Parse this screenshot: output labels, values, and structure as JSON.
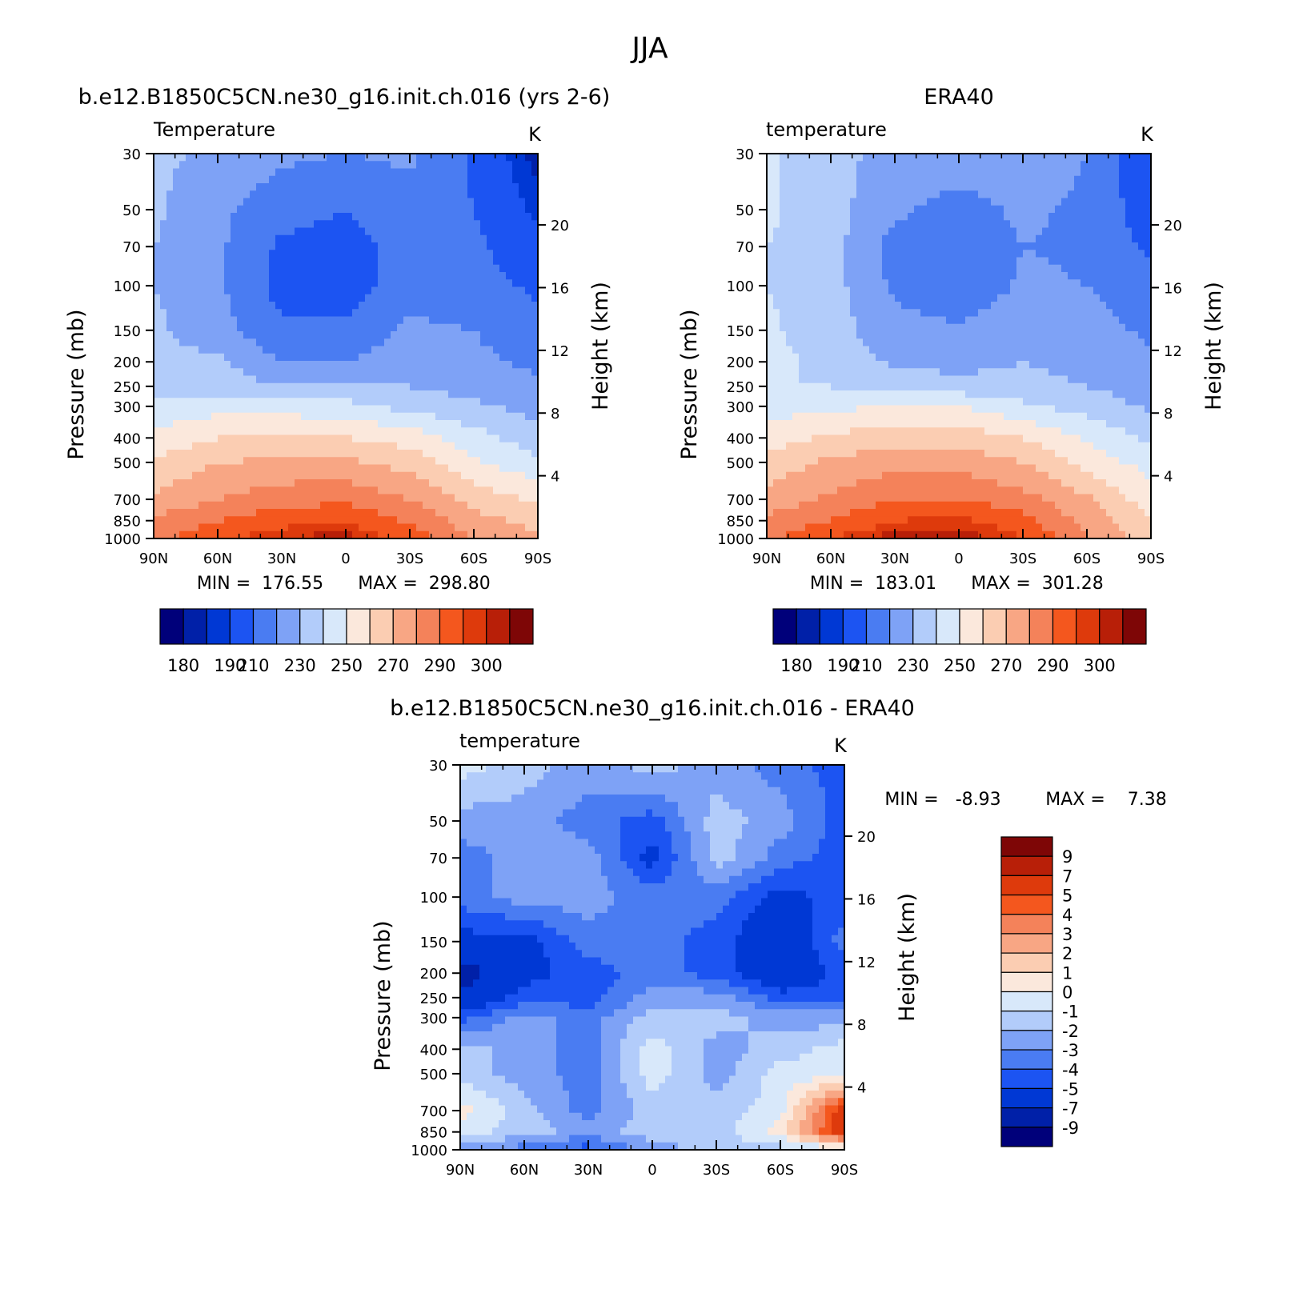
{
  "figure": {
    "season": "JJA"
  },
  "colors": {
    "abs_scale": [
      "#00007a",
      "#0020a8",
      "#0038d4",
      "#1c54f2",
      "#4a7cf2",
      "#7ea2f6",
      "#b2ccfa",
      "#d8e8fa",
      "#fbe8dc",
      "#fbcdb2",
      "#f8a684",
      "#f4825a",
      "#f4571e",
      "#de3a0c",
      "#b81f08",
      "#7e0606"
    ],
    "diff_scale": [
      "#00007a",
      "#0020a8",
      "#0038d4",
      "#1c54f2",
      "#4a7cf2",
      "#7ea2f6",
      "#b2ccfa",
      "#d8e8fa",
      "#fbe8dc",
      "#fbcdb2",
      "#f8a684",
      "#f4825a",
      "#f4571e",
      "#de3a0c",
      "#b81f08",
      "#7e0606"
    ]
  },
  "panels": {
    "model": {
      "title": "b.e12.B1850C5CN.ne30_g16.init.ch.016 (yrs 2-6)",
      "variable": "Temperature",
      "units": "K",
      "min_label": "MIN =  176.55",
      "max_label": "MAX =  298.80"
    },
    "obs": {
      "title": "ERA40",
      "variable": "temperature",
      "units": "K",
      "min_label": "MIN =  183.01",
      "max_label": "MAX =  301.28"
    },
    "diff": {
      "title": "b.e12.B1850C5CN.ne30_g16.init.ch.016 - ERA40",
      "variable": "temperature",
      "units": "K",
      "min_label": "MIN =   -8.93",
      "max_label": "MAX =    7.38"
    }
  },
  "axes": {
    "ylabel": "Pressure (mb)",
    "y2label": "Height (km)"
  },
  "colorbars": {
    "abs_labels": [
      "180",
      "190",
      "210",
      "230",
      "250",
      "270",
      "290",
      "300"
    ],
    "diff_labels": [
      "9",
      "7",
      "5",
      "4",
      "3",
      "2",
      "1",
      "0",
      "-1",
      "-2",
      "-3",
      "-4",
      "-5",
      "-7",
      "-9"
    ]
  },
  "chart_data": [
    {
      "type": "heatmap",
      "title": "b.e12.B1850C5CN.ne30_g16.init.ch.016 (yrs 2-6)",
      "variable": "Temperature",
      "units": "K",
      "x": [
        "90N",
        "60N",
        "30N",
        "0",
        "30S",
        "60S",
        "90S"
      ],
      "y": [
        30,
        50,
        70,
        100,
        150,
        200,
        250,
        300,
        400,
        500,
        700,
        850,
        1000
      ],
      "y_scale": "log",
      "y2_ticks_km": [
        4,
        8,
        12,
        16,
        20
      ],
      "ylabel": "Pressure (mb)",
      "y2label": "Height (km)",
      "lat": [
        90,
        60,
        30,
        0,
        -30,
        -60,
        -90
      ],
      "z": [
        [
          222,
          218,
          212,
          210,
          212,
          198,
          182
        ],
        [
          222,
          212,
          204,
          200,
          206,
          200,
          188
        ],
        [
          220,
          212,
          198,
          196,
          204,
          202,
          192
        ],
        [
          220,
          212,
          196,
          194,
          206,
          204,
          198
        ],
        [
          222,
          214,
          202,
          202,
          212,
          210,
          204
        ],
        [
          222,
          222,
          210,
          210,
          216,
          212,
          208
        ],
        [
          224,
          226,
          220,
          220,
          220,
          216,
          212
        ],
        [
          234,
          236,
          236,
          234,
          226,
          222,
          216
        ],
        [
          242,
          250,
          250,
          250,
          246,
          234,
          224
        ],
        [
          252,
          260,
          262,
          262,
          256,
          242,
          232
        ],
        [
          262,
          270,
          276,
          278,
          270,
          256,
          248
        ],
        [
          272,
          280,
          286,
          288,
          278,
          264,
          256
        ],
        [
          276,
          288,
          296,
          298,
          286,
          270,
          262
        ]
      ],
      "min": 176.55,
      "max": 298.8
    },
    {
      "type": "heatmap",
      "title": "ERA40",
      "variable": "temperature",
      "units": "K",
      "x": [
        "90N",
        "60N",
        "30N",
        "0",
        "30S",
        "60S",
        "90S"
      ],
      "y": [
        30,
        50,
        70,
        100,
        150,
        200,
        250,
        300,
        400,
        500,
        700,
        850,
        1000
      ],
      "y_scale": "log",
      "y2_ticks_km": [
        4,
        8,
        12,
        16,
        20
      ],
      "ylabel": "Pressure (mb)",
      "y2label": "Height (km)",
      "lat": [
        90,
        60,
        30,
        0,
        -30,
        -60,
        -90
      ],
      "z": [
        [
          232,
          222,
          218,
          216,
          216,
          210,
          190
        ],
        [
          232,
          224,
          212,
          206,
          212,
          208,
          194
        ],
        [
          230,
          224,
          206,
          202,
          210,
          208,
          198
        ],
        [
          230,
          224,
          208,
          200,
          212,
          210,
          204
        ],
        [
          232,
          224,
          214,
          212,
          218,
          214,
          208
        ],
        [
          234,
          226,
          218,
          216,
          220,
          216,
          212
        ],
        [
          230,
          230,
          226,
          224,
          224,
          220,
          216
        ],
        [
          236,
          238,
          240,
          240,
          232,
          226,
          218
        ],
        [
          244,
          252,
          256,
          256,
          250,
          238,
          228
        ],
        [
          254,
          262,
          266,
          266,
          260,
          246,
          236
        ],
        [
          264,
          272,
          280,
          280,
          274,
          262,
          244
        ],
        [
          272,
          280,
          290,
          292,
          284,
          266,
          250
        ],
        [
          278,
          290,
          298,
          300,
          290,
          272,
          252
        ]
      ],
      "min": 183.01,
      "max": 301.28
    },
    {
      "type": "heatmap",
      "title": "b.e12.B1850C5CN.ne30_g16.init.ch.016 - ERA40",
      "variable": "temperature",
      "units": "K",
      "x": [
        "90N",
        "60N",
        "30N",
        "0",
        "30S",
        "60S",
        "90S"
      ],
      "y": [
        30,
        50,
        70,
        100,
        150,
        200,
        250,
        300,
        400,
        500,
        700,
        850,
        1000
      ],
      "y_scale": "log",
      "y2_ticks_km": [
        4,
        8,
        12,
        16,
        20
      ],
      "ylabel": "Pressure (mb)",
      "y2label": "Height (km)",
      "lat": [
        90,
        60,
        30,
        0,
        -30,
        -60,
        -90
      ],
      "z": [
        [
          -0.5,
          -1.5,
          -2.5,
          -1.5,
          -2.5,
          -3.5,
          -4.5
        ],
        [
          -2.5,
          -2.5,
          -3.5,
          -4.5,
          -1.5,
          -2.5,
          -4.5
        ],
        [
          -3.5,
          -2.5,
          -2.5,
          -5.5,
          -1.5,
          -3.5,
          -4.5
        ],
        [
          -3.5,
          -2.5,
          -2.5,
          -3.5,
          -3.5,
          -5.5,
          -4.5
        ],
        [
          -5.5,
          -5.5,
          -3.5,
          -3.5,
          -4.5,
          -6.5,
          -3.5
        ],
        [
          -8,
          -5.5,
          -4.5,
          -3.5,
          -4.5,
          -6.5,
          -4.5
        ],
        [
          -6.5,
          -4.5,
          -4.5,
          -2.5,
          -2.5,
          -4.5,
          -4.5
        ],
        [
          -4.5,
          -2.5,
          -3.5,
          -1.5,
          -1.5,
          -2.5,
          -2.5
        ],
        [
          -1.5,
          -2.5,
          -3.5,
          -0.5,
          -2.5,
          -1.5,
          -0.5
        ],
        [
          -1.5,
          -2.5,
          -3.5,
          -0.5,
          -2.5,
          -0.5,
          -0.5
        ],
        [
          0.5,
          -1.5,
          -3.5,
          -1.5,
          -1.5,
          -0.5,
          6
        ],
        [
          -0.5,
          -1.5,
          -2.5,
          -1.5,
          -1.5,
          0.5,
          6
        ],
        [
          -2.5,
          -3.5,
          -4.5,
          -2.5,
          -1.5,
          -1.5,
          -0.5
        ]
      ],
      "min": -8.93,
      "max": 7.38
    }
  ]
}
